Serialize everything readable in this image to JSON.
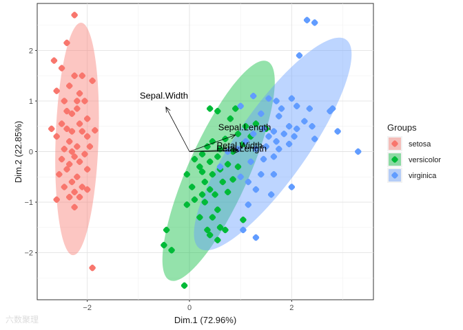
{
  "chart_data": {
    "type": "scatter",
    "xlabel": "Dim.1 (72.96%)",
    "ylabel": "Dim.2 (22.85%)",
    "xlim": [
      -2.98,
      3.6
    ],
    "ylim": [
      -2.93,
      2.93
    ],
    "xticks": [
      -2,
      0,
      2
    ],
    "yticks": [
      -2,
      -1,
      0,
      1,
      2
    ],
    "grid": true,
    "legend": {
      "title": "Groups",
      "position": "right"
    },
    "colors": {
      "setosa": "#F8766D",
      "versicolor": "#00BA38",
      "virginica": "#619CFF"
    },
    "series": [
      {
        "name": "setosa",
        "ellipse": {
          "cx": -2.2,
          "cy": 0.25,
          "rx": 0.42,
          "ry": 2.3,
          "angle": 2
        },
        "points": [
          [
            -2.25,
            2.7
          ],
          [
            -2.4,
            2.15
          ],
          [
            -2.65,
            1.8
          ],
          [
            -2.5,
            1.65
          ],
          [
            -2.25,
            1.5
          ],
          [
            -2.1,
            1.5
          ],
          [
            -1.9,
            1.4
          ],
          [
            -2.35,
            1.3
          ],
          [
            -2.6,
            1.2
          ],
          [
            -2.15,
            1.15
          ],
          [
            -2.2,
            1.0
          ],
          [
            -2.45,
            1.0
          ],
          [
            -2.05,
            1.0
          ],
          [
            -2.2,
            0.85
          ],
          [
            -2.4,
            0.8
          ],
          [
            -2.3,
            0.75
          ],
          [
            -2.0,
            0.65
          ],
          [
            -2.15,
            0.55
          ],
          [
            -2.5,
            0.55
          ],
          [
            -2.7,
            0.45
          ],
          [
            -2.4,
            0.45
          ],
          [
            -2.3,
            0.4
          ],
          [
            -2.1,
            0.4
          ],
          [
            -1.85,
            0.42
          ],
          [
            -2.0,
            0.3
          ],
          [
            -2.6,
            0.3
          ],
          [
            -2.35,
            0.2
          ],
          [
            -2.2,
            0.1
          ],
          [
            -1.95,
            0.1
          ],
          [
            -2.45,
            0.05
          ],
          [
            -2.3,
            0.0
          ],
          [
            -2.05,
            -0.05
          ],
          [
            -2.25,
            -0.1
          ],
          [
            -2.5,
            -0.15
          ],
          [
            -2.15,
            -0.2
          ],
          [
            -2.35,
            -0.25
          ],
          [
            -2.4,
            -0.35
          ],
          [
            -2.0,
            -0.35
          ],
          [
            -2.55,
            -0.45
          ],
          [
            -2.2,
            -0.5
          ],
          [
            -2.3,
            -0.6
          ],
          [
            -2.45,
            -0.7
          ],
          [
            -2.1,
            -0.7
          ],
          [
            -2.25,
            -0.8
          ],
          [
            -2.0,
            -0.75
          ],
          [
            -2.35,
            -0.9
          ],
          [
            -2.6,
            -0.95
          ],
          [
            -2.15,
            -0.9
          ],
          [
            -2.25,
            -1.1
          ],
          [
            -1.9,
            -2.3
          ]
        ]
      },
      {
        "name": "versicolor",
        "ellipse": {
          "cx": 0.57,
          "cy": -0.38,
          "rx": 2.35,
          "ry": 0.6,
          "angle": -66
        },
        "points": [
          [
            0.4,
            0.85
          ],
          [
            0.55,
            0.8
          ],
          [
            0.9,
            0.85
          ],
          [
            0.8,
            0.65
          ],
          [
            1.3,
            0.55
          ],
          [
            1.1,
            0.5
          ],
          [
            1.5,
            0.45
          ],
          [
            0.95,
            0.35
          ],
          [
            1.2,
            0.3
          ],
          [
            0.7,
            0.25
          ],
          [
            0.45,
            0.2
          ],
          [
            1.05,
            0.15
          ],
          [
            0.35,
            0.1
          ],
          [
            0.6,
            0.05
          ],
          [
            0.85,
            0.0
          ],
          [
            0.25,
            -0.05
          ],
          [
            0.55,
            -0.1
          ],
          [
            0.1,
            -0.15
          ],
          [
            0.4,
            -0.2
          ],
          [
            0.75,
            -0.25
          ],
          [
            0.2,
            -0.3
          ],
          [
            0.95,
            -0.3
          ],
          [
            0.6,
            -0.35
          ],
          [
            0.25,
            -0.4
          ],
          [
            -0.05,
            -0.45
          ],
          [
            0.45,
            -0.45
          ],
          [
            0.85,
            -0.55
          ],
          [
            0.3,
            -0.6
          ],
          [
            0.65,
            -0.6
          ],
          [
            0.05,
            -0.7
          ],
          [
            0.4,
            -0.75
          ],
          [
            0.25,
            -0.85
          ],
          [
            0.75,
            -0.8
          ],
          [
            0.5,
            -0.85
          ],
          [
            0.1,
            -0.95
          ],
          [
            -0.05,
            -1.05
          ],
          [
            0.3,
            -1.0
          ],
          [
            0.55,
            -1.15
          ],
          [
            0.2,
            -1.3
          ],
          [
            0.45,
            -1.3
          ],
          [
            -0.45,
            -1.55
          ],
          [
            0.35,
            -1.55
          ],
          [
            0.6,
            -1.5
          ],
          [
            1.05,
            -1.35
          ],
          [
            0.7,
            -1.55
          ],
          [
            -0.5,
            -1.85
          ],
          [
            0.4,
            -1.65
          ],
          [
            0.55,
            -1.75
          ],
          [
            -0.35,
            -1.95
          ],
          [
            -0.1,
            -2.65
          ]
        ]
      },
      {
        "name": "virginica",
        "ellipse": {
          "cx": 1.63,
          "cy": 0.15,
          "rx": 2.5,
          "ry": 0.7,
          "angle": -55
        },
        "points": [
          [
            2.3,
            2.6
          ],
          [
            2.45,
            2.55
          ],
          [
            2.15,
            1.9
          ],
          [
            1.25,
            1.1
          ],
          [
            1.55,
            1.05
          ],
          [
            1.7,
            1.0
          ],
          [
            2.0,
            1.05
          ],
          [
            2.1,
            0.9
          ],
          [
            2.35,
            0.85
          ],
          [
            1.8,
            0.85
          ],
          [
            1.0,
            0.9
          ],
          [
            2.75,
            0.8
          ],
          [
            2.8,
            0.85
          ],
          [
            1.4,
            0.75
          ],
          [
            1.75,
            0.7
          ],
          [
            2.25,
            0.6
          ],
          [
            1.95,
            0.5
          ],
          [
            2.1,
            0.45
          ],
          [
            2.4,
            0.5
          ],
          [
            2.9,
            0.4
          ],
          [
            1.45,
            0.45
          ],
          [
            1.65,
            0.4
          ],
          [
            1.85,
            0.35
          ],
          [
            2.05,
            0.3
          ],
          [
            1.25,
            0.35
          ],
          [
            1.55,
            0.3
          ],
          [
            1.7,
            0.2
          ],
          [
            1.95,
            0.15
          ],
          [
            2.45,
            0.25
          ],
          [
            3.3,
            0.0
          ],
          [
            1.3,
            0.05
          ],
          [
            1.5,
            0.1
          ],
          [
            1.75,
            0.05
          ],
          [
            1.1,
            0.2
          ],
          [
            0.75,
            0.0
          ],
          [
            0.95,
            0.05
          ],
          [
            1.65,
            -0.1
          ],
          [
            1.45,
            -0.15
          ],
          [
            1.2,
            -0.2
          ],
          [
            0.6,
            -0.3
          ],
          [
            1.4,
            -0.45
          ],
          [
            1.0,
            -0.5
          ],
          [
            1.65,
            -0.45
          ],
          [
            1.15,
            -0.6
          ],
          [
            1.3,
            -0.75
          ],
          [
            1.6,
            -0.85
          ],
          [
            2.0,
            -0.7
          ],
          [
            1.15,
            -1.05
          ],
          [
            1.05,
            -1.55
          ],
          [
            1.3,
            -1.7
          ]
        ]
      }
    ],
    "variables": [
      {
        "label": "Sepal.Width",
        "x": -0.46,
        "y": 0.88,
        "label_x": -0.5,
        "label_y": 1.05
      },
      {
        "label": "Sepal.Length",
        "x": 0.9,
        "y": 0.33,
        "label_x": 1.08,
        "label_y": 0.42
      },
      {
        "label": "Petal.Width",
        "x": 0.95,
        "y": 0.04,
        "label_x": 0.98,
        "label_y": 0.06
      },
      {
        "label": "Petal.Length",
        "x": 0.97,
        "y": 0.01,
        "label_x": 1.02,
        "label_y": 0.0
      }
    ]
  },
  "watermark": "六数聚理"
}
